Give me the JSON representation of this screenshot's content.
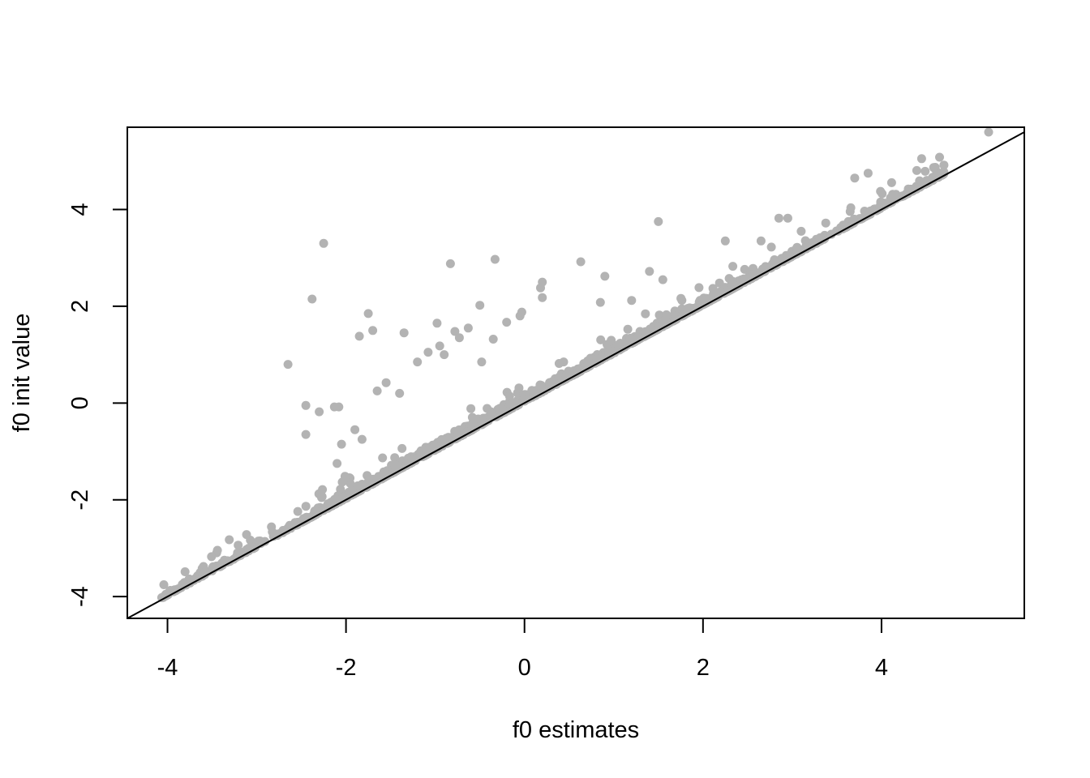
{
  "chart_data": {
    "type": "scatter",
    "title": "",
    "xlabel": "f0 estimates",
    "ylabel": "f0 init value",
    "xlim": [
      -4.45,
      5.6
    ],
    "ylim": [
      -4.45,
      5.7
    ],
    "xticks": [
      -4,
      -2,
      0,
      2,
      4
    ],
    "yticks": [
      -4,
      -2,
      0,
      2,
      4
    ],
    "grid": false,
    "legend": "none",
    "point_color": "#b3b3b3",
    "line_color": "#000000",
    "reference_line": {
      "slope": 1,
      "intercept": 0
    },
    "series": [
      {
        "outliers": [
          [
            -2.25,
            3.3
          ],
          [
            -2.38,
            2.15
          ],
          [
            -2.65,
            0.8
          ],
          [
            -2.45,
            -0.05
          ],
          [
            -2.3,
            -0.18
          ],
          [
            -2.45,
            -0.65
          ],
          [
            -2.08,
            -0.08
          ],
          [
            -2.13,
            -0.08
          ],
          [
            -2.05,
            -0.85
          ],
          [
            -1.75,
            1.85
          ],
          [
            -1.7,
            1.5
          ],
          [
            -1.85,
            1.38
          ],
          [
            -1.35,
            1.45
          ],
          [
            -1.2,
            0.85
          ],
          [
            -1.08,
            1.05
          ],
          [
            -0.98,
            1.65
          ],
          [
            -0.95,
            1.18
          ],
          [
            -0.9,
            1.0
          ],
          [
            -0.83,
            2.88
          ],
          [
            -0.78,
            1.48
          ],
          [
            -0.73,
            1.35
          ],
          [
            -0.63,
            1.55
          ],
          [
            -0.5,
            2.02
          ],
          [
            -0.33,
            2.97
          ],
          [
            -0.35,
            1.32
          ],
          [
            -0.48,
            0.85
          ],
          [
            -0.2,
            1.67
          ],
          [
            -0.05,
            1.8
          ],
          [
            -0.03,
            1.88
          ],
          [
            0.2,
            2.5
          ],
          [
            0.18,
            2.38
          ],
          [
            0.2,
            2.18
          ],
          [
            0.63,
            2.92
          ],
          [
            0.9,
            2.62
          ],
          [
            1.5,
            3.75
          ],
          [
            1.4,
            2.72
          ],
          [
            1.55,
            2.55
          ],
          [
            1.2,
            2.12
          ],
          [
            0.85,
            2.08
          ],
          [
            2.25,
            3.35
          ],
          [
            2.85,
            3.82
          ],
          [
            2.95,
            3.82
          ],
          [
            2.65,
            3.35
          ],
          [
            3.1,
            3.55
          ],
          [
            3.7,
            4.65
          ],
          [
            3.85,
            4.75
          ],
          [
            4.45,
            5.05
          ],
          [
            4.65,
            5.08
          ],
          [
            5.2,
            5.6
          ],
          [
            -1.55,
            0.42
          ],
          [
            -1.65,
            0.25
          ],
          [
            -1.4,
            0.2
          ],
          [
            -1.9,
            -0.55
          ],
          [
            -1.82,
            -0.75
          ],
          [
            -2.1,
            -1.25
          ]
        ]
      }
    ]
  }
}
